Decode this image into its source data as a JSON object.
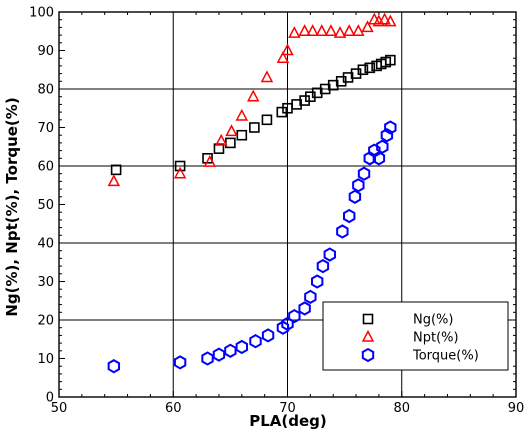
{
  "chart_data": {
    "type": "scatter",
    "title": "",
    "xlabel": "PLA(deg)",
    "ylabel": "Ng(%), Npt(%), Torque(%)",
    "xlim": [
      50,
      90
    ],
    "ylim": [
      0,
      100
    ],
    "xticks": [
      "50",
      "60",
      "70",
      "80",
      "90"
    ],
    "yticks": [
      "0",
      "10",
      "20",
      "30",
      "40",
      "50",
      "60",
      "70",
      "80",
      "90",
      "100"
    ],
    "grid": true,
    "legend_position": "bottom-right",
    "series": [
      {
        "name": "Ng(%)",
        "marker": "square",
        "color": "#000000",
        "points": [
          [
            55.0,
            59.0
          ],
          [
            60.6,
            60.0
          ],
          [
            63.0,
            62.0
          ],
          [
            64.0,
            64.5
          ],
          [
            65.0,
            66.0
          ],
          [
            66.0,
            68.0
          ],
          [
            67.1,
            70.0
          ],
          [
            68.2,
            72.0
          ],
          [
            69.5,
            74.0
          ],
          [
            70.0,
            75.0
          ],
          [
            70.8,
            76.0
          ],
          [
            71.5,
            77.0
          ],
          [
            72.0,
            78.0
          ],
          [
            72.6,
            79.0
          ],
          [
            73.3,
            80.0
          ],
          [
            74.0,
            81.0
          ],
          [
            74.7,
            82.0
          ],
          [
            75.3,
            83.0
          ],
          [
            76.0,
            84.0
          ],
          [
            76.6,
            85.0
          ],
          [
            77.2,
            85.5
          ],
          [
            77.8,
            86.0
          ],
          [
            78.2,
            86.5
          ],
          [
            78.6,
            87.0
          ],
          [
            79.0,
            87.5
          ]
        ]
      },
      {
        "name": "Npt(%)",
        "marker": "triangle",
        "color": "#ff0000",
        "points": [
          [
            54.8,
            56.0
          ],
          [
            60.6,
            58.0
          ],
          [
            63.2,
            61.0
          ],
          [
            64.2,
            66.5
          ],
          [
            65.1,
            69.0
          ],
          [
            66.0,
            73.0
          ],
          [
            67.0,
            78.0
          ],
          [
            68.2,
            83.0
          ],
          [
            69.6,
            88.0
          ],
          [
            70.0,
            90.0
          ],
          [
            70.6,
            94.5
          ],
          [
            71.5,
            95.0
          ],
          [
            72.2,
            95.0
          ],
          [
            73.0,
            95.0
          ],
          [
            73.8,
            95.0
          ],
          [
            74.6,
            94.5
          ],
          [
            75.4,
            95.0
          ],
          [
            76.2,
            95.0
          ],
          [
            77.0,
            96.0
          ],
          [
            77.6,
            98.0
          ],
          [
            78.0,
            97.5
          ],
          [
            78.5,
            98.0
          ],
          [
            79.0,
            97.5
          ]
        ]
      },
      {
        "name": "Torque(%)",
        "marker": "hexagon",
        "color": "#0000ff",
        "points": [
          [
            54.8,
            8.0
          ],
          [
            60.6,
            9.0
          ],
          [
            63.0,
            10.0
          ],
          [
            64.0,
            11.0
          ],
          [
            65.0,
            12.0
          ],
          [
            66.0,
            13.0
          ],
          [
            67.2,
            14.5
          ],
          [
            68.3,
            16.0
          ],
          [
            69.6,
            18.0
          ],
          [
            70.0,
            19.0
          ],
          [
            70.6,
            21.0
          ],
          [
            71.5,
            23.0
          ],
          [
            72.0,
            26.0
          ],
          [
            72.6,
            30.0
          ],
          [
            73.1,
            34.0
          ],
          [
            73.7,
            37.0
          ],
          [
            74.8,
            43.0
          ],
          [
            75.4,
            47.0
          ],
          [
            75.9,
            52.0
          ],
          [
            76.2,
            55.0
          ],
          [
            76.7,
            58.0
          ],
          [
            77.2,
            62.0
          ],
          [
            77.6,
            64.0
          ],
          [
            78.0,
            62.0
          ],
          [
            78.3,
            65.0
          ],
          [
            78.7,
            68.0
          ],
          [
            79.0,
            70.0
          ]
        ]
      }
    ]
  }
}
